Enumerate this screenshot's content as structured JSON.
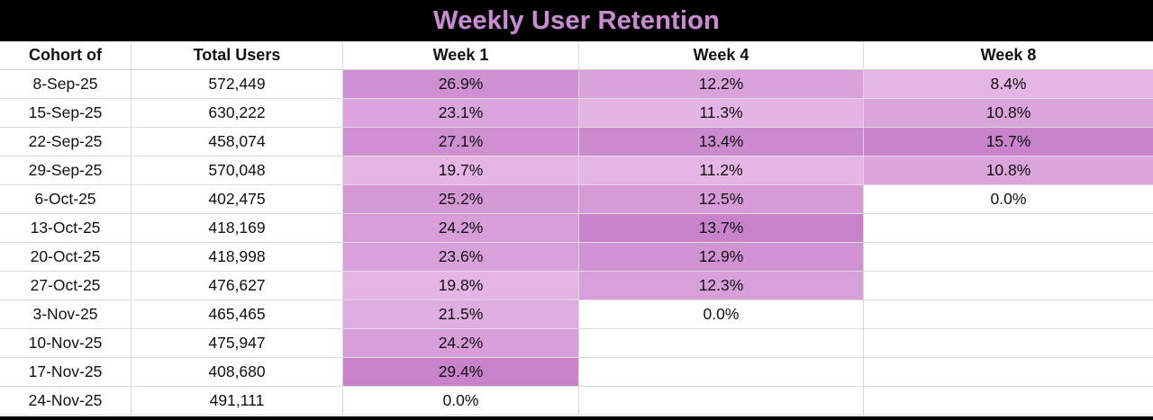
{
  "title": "Weekly User Retention",
  "colors": {
    "title": "#c98ccd",
    "title_bar_bg": "#000000",
    "heat_low": "#e5b6e5",
    "heat_high": "#c883cb",
    "zero_fill": "#ffffff",
    "gridline": "#d9d9d9"
  },
  "chart_data": {
    "type": "heatmap",
    "title": "Weekly User Retention",
    "columns": [
      "Cohort of",
      "Total Users",
      "Week 1",
      "Week 4",
      "Week 8"
    ],
    "value_format": "percent_one_decimal",
    "color_scale_note": "per-column scale, light=low to dark=high, 0.0% and blank cells are white",
    "rows": [
      {
        "cohort": "8-Sep-25",
        "total_users": "572,449",
        "week1": 26.9,
        "week4": 12.2,
        "week8": 8.4
      },
      {
        "cohort": "15-Sep-25",
        "total_users": "630,222",
        "week1": 23.1,
        "week4": 11.3,
        "week8": 10.8
      },
      {
        "cohort": "22-Sep-25",
        "total_users": "458,074",
        "week1": 27.1,
        "week4": 13.4,
        "week8": 15.7
      },
      {
        "cohort": "29-Sep-25",
        "total_users": "570,048",
        "week1": 19.7,
        "week4": 11.2,
        "week8": 10.8
      },
      {
        "cohort": "6-Oct-25",
        "total_users": "402,475",
        "week1": 25.2,
        "week4": 12.5,
        "week8": 0.0
      },
      {
        "cohort": "13-Oct-25",
        "total_users": "418,169",
        "week1": 24.2,
        "week4": 13.7,
        "week8": null
      },
      {
        "cohort": "20-Oct-25",
        "total_users": "418,998",
        "week1": 23.6,
        "week4": 12.9,
        "week8": null
      },
      {
        "cohort": "27-Oct-25",
        "total_users": "476,627",
        "week1": 19.8,
        "week4": 12.3,
        "week8": null
      },
      {
        "cohort": "3-Nov-25",
        "total_users": "465,465",
        "week1": 21.5,
        "week4": 0.0,
        "week8": null
      },
      {
        "cohort": "10-Nov-25",
        "total_users": "475,947",
        "week1": 24.2,
        "week4": null,
        "week8": null
      },
      {
        "cohort": "17-Nov-25",
        "total_users": "408,680",
        "week1": 29.4,
        "week4": null,
        "week8": null
      },
      {
        "cohort": "24-Nov-25",
        "total_users": "491,111",
        "week1": 0.0,
        "week4": null,
        "week8": null
      }
    ]
  }
}
